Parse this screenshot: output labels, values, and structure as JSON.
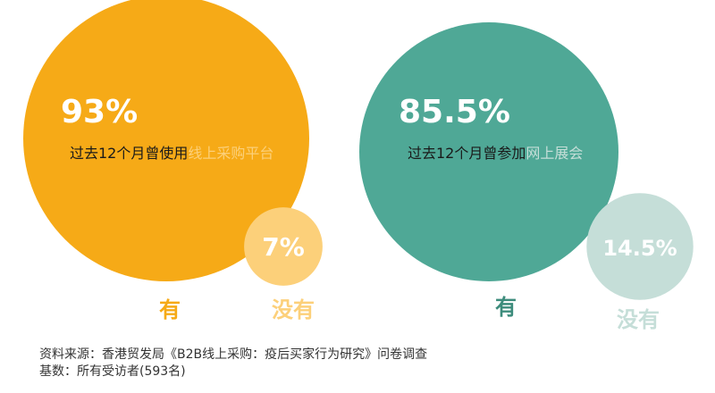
{
  "chart_data": [
    {
      "type": "pie",
      "categories": [
        "有",
        "没有"
      ],
      "values": [
        93,
        7
      ],
      "value_labels": [
        "93%",
        "7%"
      ],
      "caption_prefix": "过去12个月曾使用",
      "caption_highlight": "线上采购平台",
      "colors": [
        "#F6AA17",
        "#FCD07A"
      ],
      "legend_colors": [
        "#F6AA17",
        "#FCD07A"
      ],
      "caption_highlight_color": "#FCD07A"
    },
    {
      "type": "pie",
      "categories": [
        "有",
        "没有"
      ],
      "values": [
        85.5,
        14.5
      ],
      "value_labels": [
        "85.5%",
        "14.5%"
      ],
      "caption_prefix": "过去12个月曾参加",
      "caption_highlight": "网上展会",
      "colors": [
        "#4FA896",
        "#C5DED8"
      ],
      "legend_colors": [
        "#3D8C7C",
        "#C5DED8"
      ],
      "caption_highlight_color": "#C5DED8"
    }
  ],
  "source": {
    "line1": "资料来源：香港贸发局《B2B线上采购：疫后买家行为研究》问卷调查",
    "line2": "基数：所有受访者(593名)"
  }
}
